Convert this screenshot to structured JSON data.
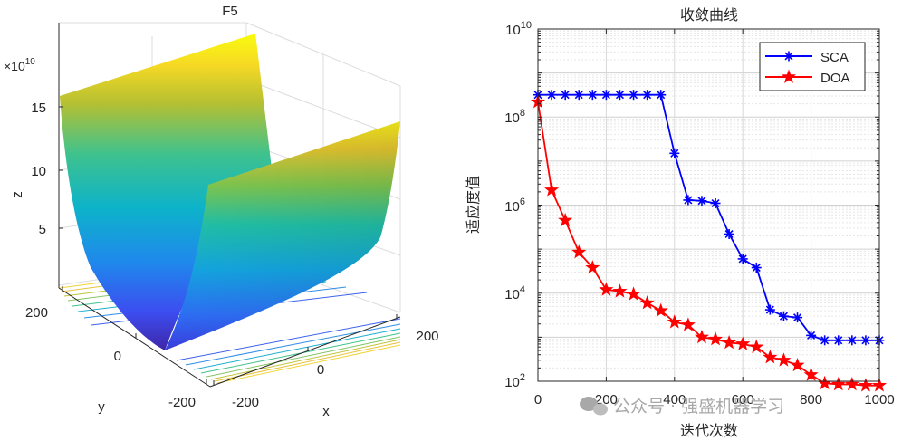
{
  "chart_data": [
    {
      "type": "surface3d",
      "title": "F5",
      "xlabel": "x",
      "ylabel": "y",
      "zlabel": "z",
      "z_exponent_label": "×10",
      "z_exponent_power": "10",
      "x_ticks": [
        "-200",
        "0",
        "200"
      ],
      "y_ticks": [
        "200",
        "0",
        "-200"
      ],
      "z_ticks": [
        "15",
        "10",
        "5"
      ],
      "xlim": [
        -200,
        200
      ],
      "ylim": [
        -200,
        200
      ],
      "zlim": [
        0,
        16
      ],
      "colormap": "parula",
      "contour_projection": true
    },
    {
      "type": "line",
      "title": "收敛曲线",
      "xlabel": "迭代次数",
      "ylabel": "适应度值",
      "yscale": "log",
      "xlim": [
        0,
        1000
      ],
      "ylim": [
        100,
        10000000000
      ],
      "x_ticks": [
        "0",
        "200",
        "400",
        "600",
        "800",
        "1000"
      ],
      "y_tick_bases": [
        "10",
        "10",
        "10",
        "10",
        "10"
      ],
      "y_tick_exponents": [
        "2",
        "4",
        "6",
        "8",
        "10"
      ],
      "grid": true,
      "legend_position": "top-right",
      "series": [
        {
          "name": "SCA",
          "color": "#0000ff",
          "marker": "asterisk",
          "x": [
            0,
            40,
            80,
            120,
            160,
            200,
            240,
            280,
            320,
            360,
            400,
            440,
            480,
            520,
            560,
            600,
            640,
            680,
            720,
            760,
            800,
            840,
            880,
            920,
            960,
            1000
          ],
          "y": [
            320000000,
            320000000,
            320000000,
            320000000,
            320000000,
            320000000,
            320000000,
            320000000,
            320000000,
            320000000,
            15000000,
            1300000,
            1250000,
            1100000,
            220000,
            60000,
            38000,
            4200,
            3000,
            2800,
            1100,
            850,
            850,
            850,
            850,
            850
          ]
        },
        {
          "name": "DOA",
          "color": "#ff0000",
          "marker": "star",
          "x": [
            0,
            40,
            80,
            120,
            160,
            200,
            240,
            280,
            320,
            360,
            400,
            440,
            480,
            520,
            560,
            600,
            640,
            680,
            720,
            760,
            800,
            840,
            880,
            920,
            960,
            1000
          ],
          "y": [
            220000000,
            2200000,
            450000,
            85000,
            38000,
            12000,
            11000,
            9500,
            6000,
            4000,
            2200,
            1900,
            1000,
            900,
            750,
            700,
            600,
            350,
            300,
            230,
            140,
            90,
            85,
            85,
            80,
            80
          ]
        }
      ]
    }
  ],
  "watermark": "公众号 · 强盛机器学习"
}
